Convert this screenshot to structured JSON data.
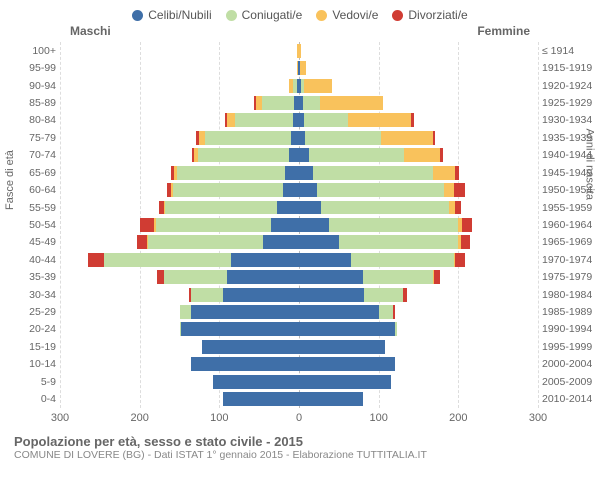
{
  "legend": {
    "items": [
      {
        "label": "Celibi/Nubili",
        "color": "#3f6fa8"
      },
      {
        "label": "Coniugati/e",
        "color": "#c0dea5"
      },
      {
        "label": "Vedovi/e",
        "color": "#f9c25c"
      },
      {
        "label": "Divorziati/e",
        "color": "#d03c33"
      }
    ]
  },
  "colors": {
    "celibi": "#3f6fa8",
    "coniugati": "#c0dea5",
    "vedovi": "#f9c25c",
    "divorziati": "#d03c33",
    "grid": "#dddddd",
    "center": "#bbbbbb",
    "text": "#666666",
    "background": "#ffffff"
  },
  "header": {
    "left": "Maschi",
    "right": "Femmine"
  },
  "axis": {
    "left_title": "Fasce di età",
    "right_title": "Anni di nascita",
    "xmax": 300,
    "xticks": [
      300,
      200,
      100,
      0,
      100,
      200,
      300
    ]
  },
  "rows": [
    {
      "age": "100+",
      "birth": "≤ 1914",
      "m": [
        0,
        0,
        2,
        0
      ],
      "f": [
        0,
        0,
        3,
        0
      ]
    },
    {
      "age": "95-99",
      "birth": "1915-1919",
      "m": [
        1,
        0,
        1,
        0
      ],
      "f": [
        1,
        0,
        8,
        0
      ]
    },
    {
      "age": "90-94",
      "birth": "1920-1924",
      "m": [
        3,
        5,
        4,
        0
      ],
      "f": [
        2,
        4,
        35,
        0
      ]
    },
    {
      "age": "85-89",
      "birth": "1925-1929",
      "m": [
        6,
        40,
        8,
        2
      ],
      "f": [
        5,
        22,
        78,
        0
      ]
    },
    {
      "age": "80-84",
      "birth": "1930-1934",
      "m": [
        8,
        72,
        10,
        3
      ],
      "f": [
        6,
        55,
        80,
        3
      ]
    },
    {
      "age": "75-79",
      "birth": "1935-1939",
      "m": [
        10,
        108,
        8,
        3
      ],
      "f": [
        8,
        95,
        65,
        3
      ]
    },
    {
      "age": "70-74",
      "birth": "1940-1944",
      "m": [
        12,
        115,
        5,
        3
      ],
      "f": [
        12,
        120,
        45,
        4
      ]
    },
    {
      "age": "65-69",
      "birth": "1945-1949",
      "m": [
        18,
        135,
        4,
        4
      ],
      "f": [
        18,
        150,
        28,
        5
      ]
    },
    {
      "age": "60-64",
      "birth": "1950-1954",
      "m": [
        20,
        138,
        3,
        5
      ],
      "f": [
        22,
        160,
        12,
        15
      ]
    },
    {
      "age": "55-59",
      "birth": "1955-1959",
      "m": [
        28,
        140,
        2,
        6
      ],
      "f": [
        28,
        160,
        8,
        8
      ]
    },
    {
      "age": "50-54",
      "birth": "1960-1964",
      "m": [
        35,
        145,
        2,
        18
      ],
      "f": [
        38,
        162,
        5,
        12
      ]
    },
    {
      "age": "45-49",
      "birth": "1965-1969",
      "m": [
        45,
        145,
        1,
        12
      ],
      "f": [
        50,
        150,
        3,
        12
      ]
    },
    {
      "age": "40-44",
      "birth": "1970-1974",
      "m": [
        85,
        160,
        0,
        20
      ],
      "f": [
        65,
        130,
        1,
        12
      ]
    },
    {
      "age": "35-39",
      "birth": "1975-1979",
      "m": [
        90,
        80,
        0,
        8
      ],
      "f": [
        80,
        88,
        1,
        8
      ]
    },
    {
      "age": "30-34",
      "birth": "1980-1984",
      "m": [
        95,
        40,
        0,
        3
      ],
      "f": [
        82,
        48,
        0,
        5
      ]
    },
    {
      "age": "25-29",
      "birth": "1985-1989",
      "m": [
        135,
        15,
        0,
        0
      ],
      "f": [
        100,
        18,
        0,
        2
      ]
    },
    {
      "age": "20-24",
      "birth": "1990-1994",
      "m": [
        148,
        2,
        0,
        0
      ],
      "f": [
        120,
        3,
        0,
        0
      ]
    },
    {
      "age": "15-19",
      "birth": "1995-1999",
      "m": [
        122,
        0,
        0,
        0
      ],
      "f": [
        108,
        0,
        0,
        0
      ]
    },
    {
      "age": "10-14",
      "birth": "2000-2004",
      "m": [
        135,
        0,
        0,
        0
      ],
      "f": [
        120,
        0,
        0,
        0
      ]
    },
    {
      "age": "5-9",
      "birth": "2005-2009",
      "m": [
        108,
        0,
        0,
        0
      ],
      "f": [
        115,
        0,
        0,
        0
      ]
    },
    {
      "age": "0-4",
      "birth": "2010-2014",
      "m": [
        95,
        0,
        0,
        0
      ],
      "f": [
        80,
        0,
        0,
        0
      ]
    }
  ],
  "footer": {
    "title": "Popolazione per età, sesso e stato civile - 2015",
    "sub": "COMUNE DI LOVERE (BG) - Dati ISTAT 1° gennaio 2015 - Elaborazione TUTTITALIA.IT"
  }
}
